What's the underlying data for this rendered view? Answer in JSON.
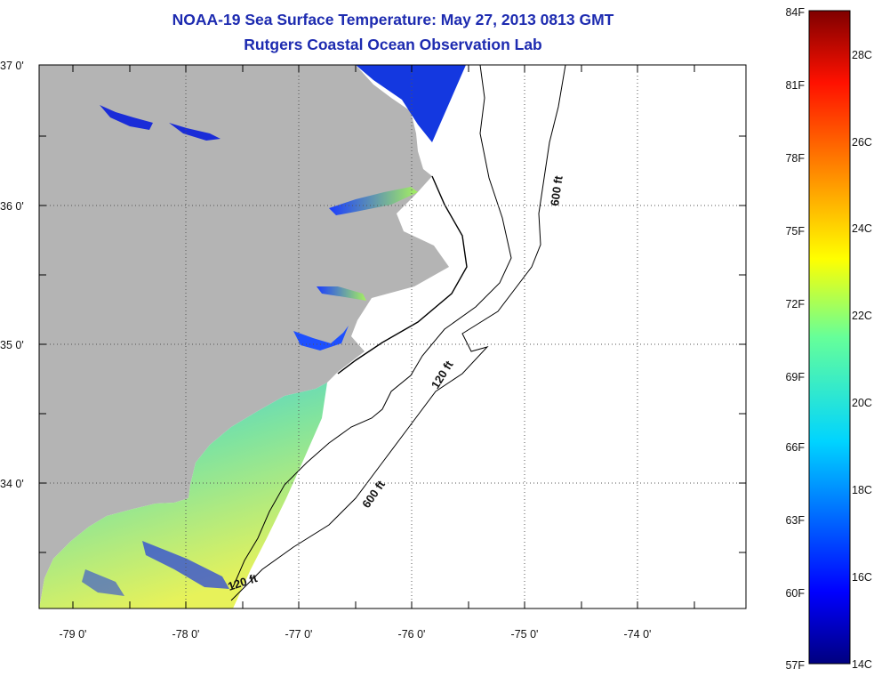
{
  "title": "NOAA-19 Sea Surface Temperature:  May 27, 2013 0813 GMT",
  "subtitle": "Rutgers Coastal Ocean Observation Lab",
  "map": {
    "lat_labels": [
      "37 0'",
      "36 0'",
      "35 0'",
      "34 0'"
    ],
    "lon_labels": [
      "-79 0'",
      "-78 0'",
      "-77 0'",
      "-76 0'",
      "-75 0'",
      "-74 0'"
    ],
    "lon_range": [
      -79.3,
      -73.0
    ],
    "lat_range": [
      33.1,
      37.0
    ],
    "land_color": "#b4b4b4",
    "contours": [
      "600 ft",
      "120 ft",
      "600 ft",
      "120 ft"
    ]
  },
  "colorbar": {
    "fahrenheit_labels": [
      "84F",
      "81F",
      "78F",
      "75F",
      "72F",
      "69F",
      "66F",
      "63F",
      "60F",
      "57F"
    ],
    "celsius_labels": [
      "28C",
      "26C",
      "24C",
      "22C",
      "20C",
      "18C",
      "16C",
      "14C"
    ],
    "min_f": 57,
    "max_f": 84
  }
}
